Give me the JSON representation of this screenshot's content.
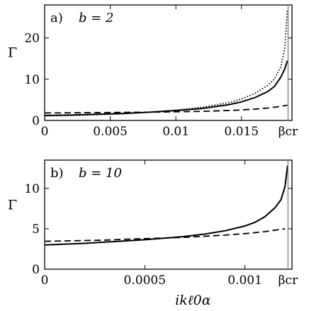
{
  "chart_data": [
    {
      "type": "line",
      "panel_label": "a)",
      "param_label": "b = 2",
      "ylabel": "Γ",
      "xlabel": "",
      "xlim": [
        0,
        0.01885
      ],
      "ylim": [
        0,
        28
      ],
      "x_ticks": [
        0,
        0.005,
        0.01,
        0.015
      ],
      "x_tick_labels": [
        "0",
        "0.005",
        "0.01",
        "0.015"
      ],
      "y_ticks": [
        0,
        10,
        20
      ],
      "y_tick_labels": [
        "0",
        "10",
        "20"
      ],
      "critical_x": 0.01855,
      "critical_label": "βcr",
      "series": [
        {
          "style": "solid",
          "x": [
            0,
            0.002,
            0.004,
            0.006,
            0.008,
            0.01,
            0.012,
            0.014,
            0.015,
            0.016,
            0.017,
            0.0175,
            0.018,
            0.0183,
            0.0185
          ],
          "y": [
            1.2,
            1.3,
            1.5,
            1.7,
            2.0,
            2.4,
            2.9,
            3.8,
            4.5,
            5.5,
            7.0,
            8.2,
            10.5,
            12.5,
            14.5
          ]
        },
        {
          "style": "dotted",
          "x": [
            0,
            0.002,
            0.004,
            0.006,
            0.008,
            0.01,
            0.012,
            0.014,
            0.015,
            0.016,
            0.017,
            0.0175,
            0.018,
            0.0183,
            0.0185
          ],
          "y": [
            1.1,
            1.2,
            1.4,
            1.6,
            2.0,
            2.5,
            3.2,
            4.3,
            5.2,
            6.5,
            8.5,
            10.0,
            13.0,
            17.5,
            27.0
          ]
        },
        {
          "style": "dashed",
          "x": [
            0,
            0.002,
            0.004,
            0.006,
            0.008,
            0.01,
            0.012,
            0.014,
            0.015,
            0.016,
            0.017,
            0.018,
            0.0185
          ],
          "y": [
            1.8,
            1.85,
            1.9,
            1.95,
            2.0,
            2.1,
            2.2,
            2.4,
            2.55,
            2.75,
            3.0,
            3.4,
            3.7
          ]
        }
      ]
    },
    {
      "type": "line",
      "panel_label": "b)",
      "param_label": "b = 10",
      "ylabel": "Γ",
      "xlabel": "ikℓ0α",
      "xlim": [
        0,
        0.001235
      ],
      "ylim": [
        0,
        13.5
      ],
      "x_ticks": [
        0,
        0.0005,
        0.001
      ],
      "x_tick_labels": [
        "0",
        "0.0005",
        "0.001"
      ],
      "y_ticks": [
        0,
        5,
        10
      ],
      "y_tick_labels": [
        "0",
        "5",
        "10"
      ],
      "critical_x": 0.001215,
      "critical_label": "βcr",
      "series": [
        {
          "style": "solid",
          "x": [
            0,
            0.0001,
            0.0002,
            0.0003,
            0.0004,
            0.0005,
            0.0006,
            0.0007,
            0.0008,
            0.0009,
            0.001,
            0.00105,
            0.0011,
            0.00115,
            0.00118,
            0.0012,
            0.001213
          ],
          "y": [
            3.0,
            3.1,
            3.2,
            3.35,
            3.5,
            3.65,
            3.85,
            4.05,
            4.35,
            4.75,
            5.35,
            5.8,
            6.5,
            7.6,
            8.6,
            10.2,
            12.8
          ]
        },
        {
          "style": "dotted",
          "x": [
            0,
            0.0001,
            0.0002,
            0.0003,
            0.0004,
            0.0005,
            0.0006,
            0.0007,
            0.0008,
            0.0009,
            0.001,
            0.00105,
            0.0011,
            0.00115,
            0.00118,
            0.0012,
            0.001213
          ],
          "y": [
            3.0,
            3.1,
            3.2,
            3.35,
            3.5,
            3.65,
            3.85,
            4.05,
            4.35,
            4.75,
            5.35,
            5.8,
            6.5,
            7.6,
            8.6,
            10.3,
            13.0
          ]
        },
        {
          "style": "dashed",
          "x": [
            0,
            0.0001,
            0.0002,
            0.0003,
            0.0004,
            0.0005,
            0.0006,
            0.0007,
            0.0008,
            0.0009,
            0.001,
            0.0011,
            0.0012
          ],
          "y": [
            3.45,
            3.5,
            3.55,
            3.6,
            3.7,
            3.78,
            3.86,
            3.95,
            4.08,
            4.22,
            4.4,
            4.65,
            5.0
          ]
        }
      ]
    }
  ]
}
